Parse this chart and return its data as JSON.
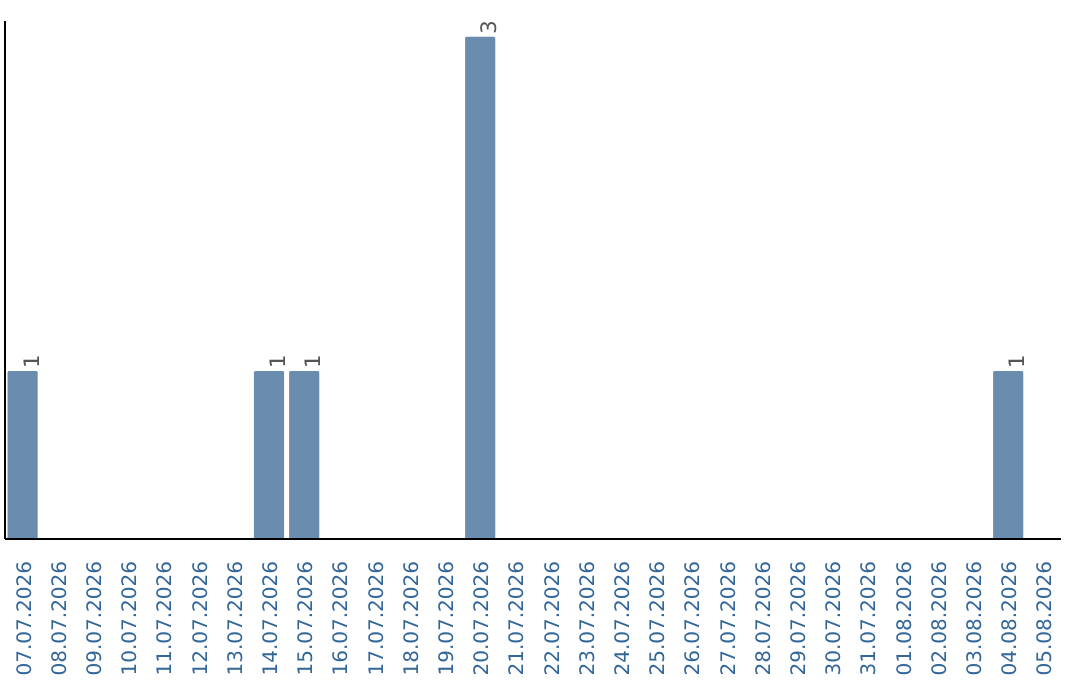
{
  "chart_data": {
    "type": "bar",
    "categories": [
      "07.07.2026",
      "08.07.2026",
      "09.07.2026",
      "10.07.2026",
      "11.07.2026",
      "12.07.2026",
      "13.07.2026",
      "14.07.2026",
      "15.07.2026",
      "16.07.2026",
      "17.07.2026",
      "18.07.2026",
      "19.07.2026",
      "20.07.2026",
      "21.07.2026",
      "22.07.2026",
      "23.07.2026",
      "24.07.2026",
      "25.07.2026",
      "26.07.2026",
      "27.07.2026",
      "28.07.2026",
      "29.07.2026",
      "30.07.2026",
      "31.07.2026",
      "01.08.2026",
      "02.08.2026",
      "03.08.2026",
      "04.08.2026",
      "05.08.2026"
    ],
    "values": [
      1,
      0,
      0,
      0,
      0,
      0,
      0,
      1,
      1,
      0,
      0,
      0,
      0,
      3,
      0,
      0,
      0,
      0,
      0,
      0,
      0,
      0,
      0,
      0,
      0,
      0,
      0,
      0,
      1,
      0
    ],
    "value_labels": [
      "1",
      null,
      null,
      null,
      null,
      null,
      null,
      "1",
      "1",
      null,
      null,
      null,
      null,
      "3",
      null,
      null,
      null,
      null,
      null,
      null,
      null,
      null,
      null,
      null,
      null,
      null,
      null,
      null,
      "1",
      null
    ],
    "color": "#6a8caf",
    "ylim": [
      0,
      3.1
    ],
    "tick_labels": "x",
    "grid": false
  }
}
